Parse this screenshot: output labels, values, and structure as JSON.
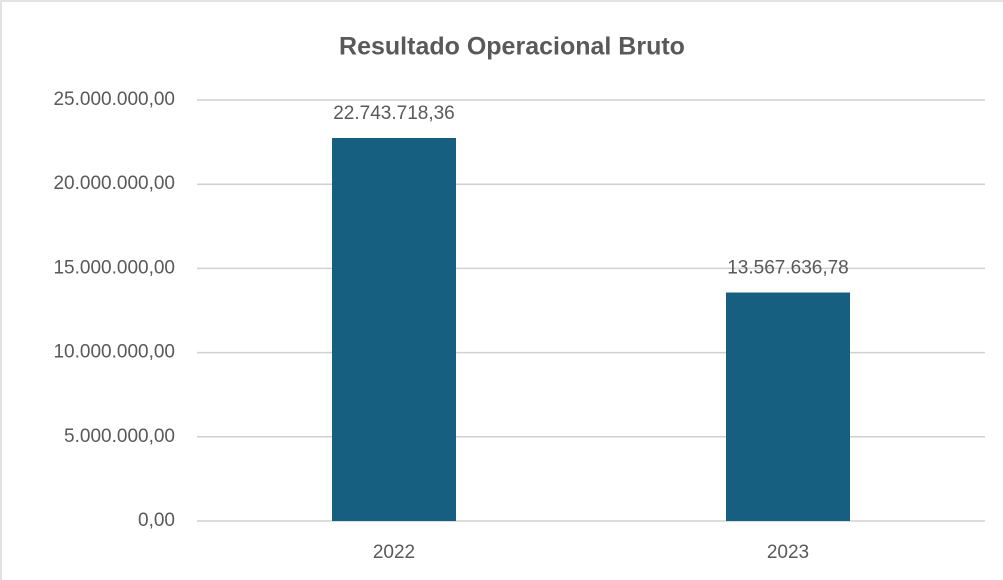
{
  "chart_data": {
    "type": "bar",
    "title": "Resultado Operacional Bruto",
    "categories": [
      "2022",
      "2023"
    ],
    "values": [
      22743718.36,
      13567636.78
    ],
    "value_labels": [
      "22.743.718,36",
      "13.567.636,78"
    ],
    "color": "#175f80",
    "ylim": [
      0,
      25000000
    ],
    "yticks": [
      {
        "value": 0,
        "label": "0,00"
      },
      {
        "value": 5000000,
        "label": "5.000.000,00"
      },
      {
        "value": 10000000,
        "label": "10.000.000,00"
      },
      {
        "value": 15000000,
        "label": "15.000.000,00"
      },
      {
        "value": 20000000,
        "label": "20.000.000,00"
      },
      {
        "value": 25000000,
        "label": "25.000.000,00"
      }
    ],
    "grid": true
  }
}
